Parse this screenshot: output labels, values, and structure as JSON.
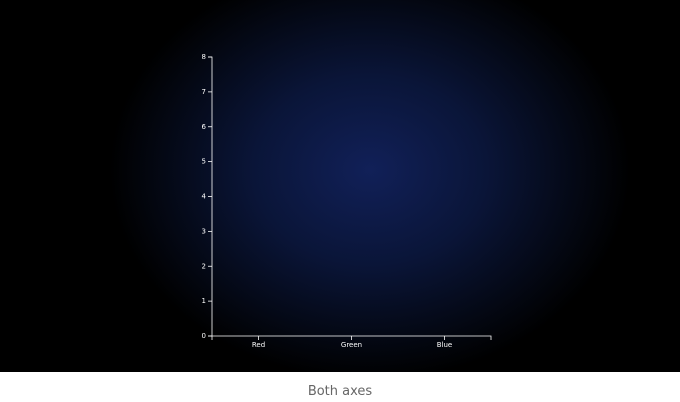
{
  "chart_data": {
    "type": "bar",
    "categories": [
      "Red",
      "Green",
      "Blue"
    ],
    "ylim": [
      0,
      8
    ],
    "yticks": [
      0,
      1,
      2,
      3,
      4,
      5,
      6,
      7,
      8
    ],
    "caption": "Both axes"
  }
}
